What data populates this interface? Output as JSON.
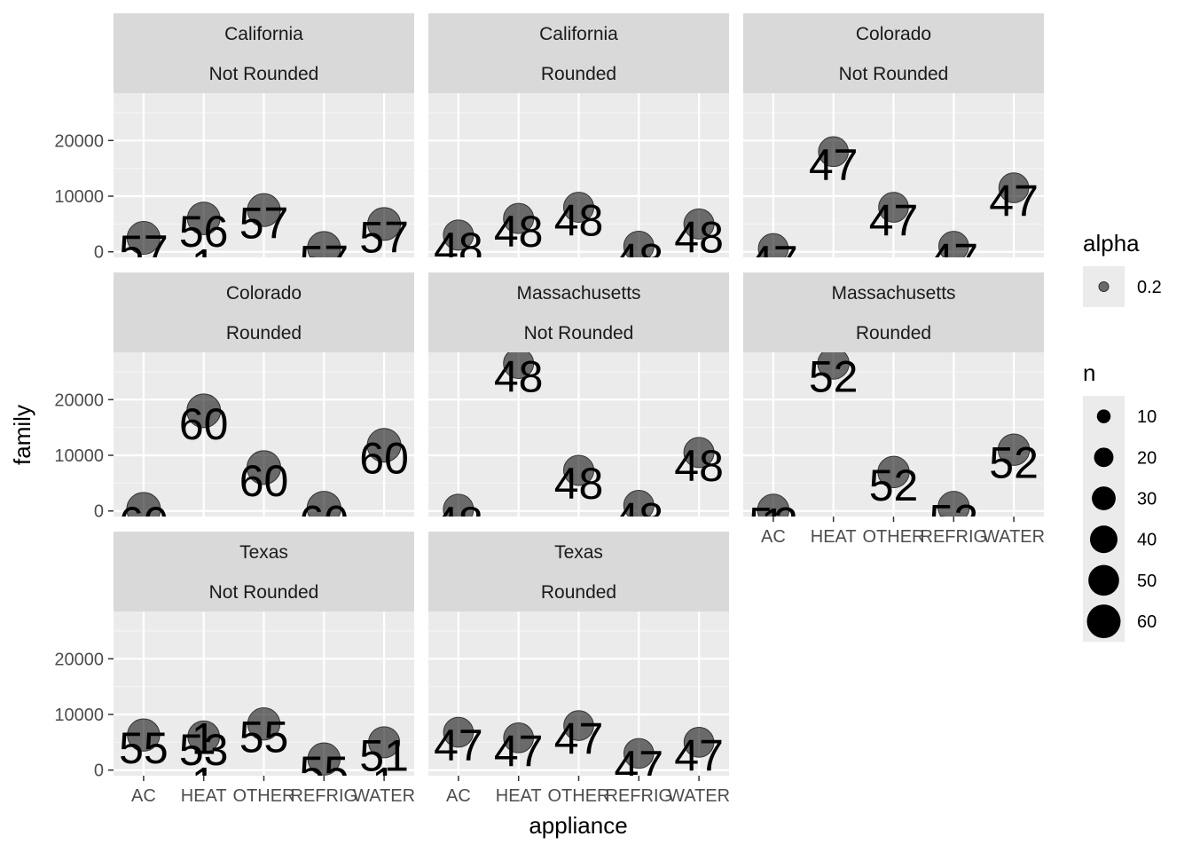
{
  "chart_data": {
    "type": "scatter",
    "xlabel": "appliance",
    "ylabel": "family",
    "categories": [
      "AC",
      "HEAT",
      "OTHER",
      "REFRIG",
      "WATER"
    ],
    "y_ticks": [
      0,
      10000,
      20000
    ],
    "y_tick_labels": [
      "0",
      "10000",
      "20000"
    ],
    "ylim": [
      -1000,
      28500
    ],
    "grid": true,
    "legend_position": "right",
    "legends": {
      "alpha": {
        "title": "alpha",
        "entries": [
          "0.2"
        ]
      },
      "n": {
        "title": "n",
        "entries": [
          {
            "label": "10",
            "value": 10
          },
          {
            "label": "20",
            "value": 20
          },
          {
            "label": "30",
            "value": 30
          },
          {
            "label": "40",
            "value": 40
          },
          {
            "label": "50",
            "value": 50
          },
          {
            "label": "60",
            "value": 60
          }
        ]
      }
    },
    "facets": [
      {
        "state": "California",
        "rounding": "Not Rounded",
        "points": [
          {
            "x": "AC",
            "y": 2500,
            "n": 57
          },
          {
            "x": "HEAT",
            "y": 6000,
            "n": 56
          },
          {
            "x": "HEAT",
            "y": 0,
            "n": 1
          },
          {
            "x": "OTHER",
            "y": 7500,
            "n": 57
          },
          {
            "x": "REFRIG",
            "y": 700,
            "n": 57
          },
          {
            "x": "WATER",
            "y": 5000,
            "n": 57
          }
        ]
      },
      {
        "state": "California",
        "rounding": "Rounded",
        "points": [
          {
            "x": "AC",
            "y": 3000,
            "n": 48
          },
          {
            "x": "HEAT",
            "y": 6000,
            "n": 48
          },
          {
            "x": "OTHER",
            "y": 8000,
            "n": 48
          },
          {
            "x": "REFRIG",
            "y": 1000,
            "n": 48
          },
          {
            "x": "WATER",
            "y": 5000,
            "n": 48
          }
        ]
      },
      {
        "state": "Colorado",
        "rounding": "Not Rounded",
        "points": [
          {
            "x": "AC",
            "y": 600,
            "n": 47
          },
          {
            "x": "HEAT",
            "y": 18000,
            "n": 47
          },
          {
            "x": "OTHER",
            "y": 8000,
            "n": 47
          },
          {
            "x": "REFRIG",
            "y": 1000,
            "n": 47
          },
          {
            "x": "WATER",
            "y": 11500,
            "n": 47
          }
        ]
      },
      {
        "state": "Colorado",
        "rounding": "Rounded",
        "points": [
          {
            "x": "AC",
            "y": 300,
            "n": 60
          },
          {
            "x": "HEAT",
            "y": 18000,
            "n": 60
          },
          {
            "x": "OTHER",
            "y": 7800,
            "n": 60
          },
          {
            "x": "REFRIG",
            "y": 500,
            "n": 60
          },
          {
            "x": "WATER",
            "y": 11800,
            "n": 60
          }
        ]
      },
      {
        "state": "Massachusetts",
        "rounding": "Not Rounded",
        "points": [
          {
            "x": "AC",
            "y": 300,
            "n": 48
          },
          {
            "x": "HEAT",
            "y": 26500,
            "n": 48
          },
          {
            "x": "OTHER",
            "y": 7300,
            "n": 48
          },
          {
            "x": "REFRIG",
            "y": 1000,
            "n": 48
          },
          {
            "x": "WATER",
            "y": 10500,
            "n": 48
          }
        ]
      },
      {
        "state": "Massachusetts",
        "rounding": "Rounded",
        "points": [
          {
            "x": "AC",
            "y": 200,
            "n": 52
          },
          {
            "x": "AC",
            "y": 0,
            "n": 1
          },
          {
            "x": "HEAT",
            "y": 26500,
            "n": 52
          },
          {
            "x": "OTHER",
            "y": 7000,
            "n": 52
          },
          {
            "x": "REFRIG",
            "y": 700,
            "n": 52
          },
          {
            "x": "WATER",
            "y": 11000,
            "n": 52
          }
        ]
      },
      {
        "state": "Texas",
        "rounding": "Not Rounded",
        "points": [
          {
            "x": "AC",
            "y": 6300,
            "n": 55
          },
          {
            "x": "HEAT",
            "y": 6000,
            "n": 53
          },
          {
            "x": "HEAT",
            "y": 8000,
            "n": 1
          },
          {
            "x": "HEAT",
            "y": 0,
            "n": 1
          },
          {
            "x": "OTHER",
            "y": 8300,
            "n": 55
          },
          {
            "x": "REFRIG",
            "y": 2000,
            "n": 55
          },
          {
            "x": "WATER",
            "y": 5000,
            "n": 51
          },
          {
            "x": "WATER",
            "y": 0,
            "n": 1
          }
        ]
      },
      {
        "state": "Texas",
        "rounding": "Rounded",
        "points": [
          {
            "x": "AC",
            "y": 6800,
            "n": 47
          },
          {
            "x": "HEAT",
            "y": 5800,
            "n": 47
          },
          {
            "x": "OTHER",
            "y": 8000,
            "n": 47
          },
          {
            "x": "REFRIG",
            "y": 3000,
            "n": 47
          },
          {
            "x": "WATER",
            "y": 5000,
            "n": 47
          }
        ]
      }
    ]
  }
}
